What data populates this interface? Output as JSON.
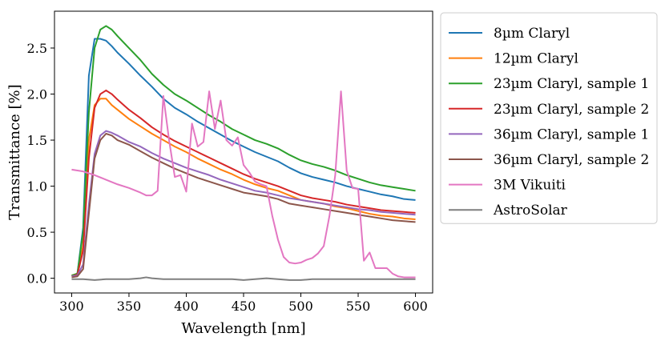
{
  "chart_data": {
    "type": "line",
    "title": "",
    "xlabel": "Wavelength [nm]",
    "ylabel": "Transmittance [%]",
    "xlim": [
      285,
      615
    ],
    "ylim": [
      -0.16,
      2.9
    ],
    "xticks": [
      300,
      350,
      400,
      450,
      500,
      550,
      600
    ],
    "yticks": [
      0.0,
      0.5,
      1.0,
      1.5,
      2.0,
      2.5
    ],
    "xtick_labels": [
      "300",
      "350",
      "400",
      "450",
      "500",
      "550",
      "600"
    ],
    "ytick_labels": [
      "0.0",
      "0.5",
      "1.0",
      "1.5",
      "2.0",
      "2.5"
    ],
    "grid": false,
    "legend_position": "outside-right",
    "series": [
      {
        "name": "8µm Claryl",
        "color": "#1f77b4",
        "x": [
          300,
          305,
          310,
          315,
          320,
          325,
          330,
          335,
          340,
          350,
          360,
          370,
          380,
          390,
          400,
          410,
          420,
          430,
          440,
          450,
          460,
          470,
          480,
          490,
          500,
          510,
          520,
          530,
          540,
          550,
          560,
          570,
          580,
          590,
          600
        ],
        "y": [
          0.03,
          0.05,
          0.55,
          2.2,
          2.6,
          2.6,
          2.58,
          2.52,
          2.45,
          2.33,
          2.2,
          2.08,
          1.95,
          1.85,
          1.78,
          1.7,
          1.63,
          1.56,
          1.49,
          1.43,
          1.37,
          1.32,
          1.27,
          1.2,
          1.14,
          1.1,
          1.07,
          1.04,
          1.0,
          0.97,
          0.94,
          0.91,
          0.89,
          0.86,
          0.85
        ]
      },
      {
        "name": "12µm Claryl",
        "color": "#ff7f0e",
        "x": [
          300,
          305,
          310,
          315,
          320,
          325,
          330,
          335,
          340,
          350,
          360,
          370,
          380,
          390,
          400,
          410,
          420,
          430,
          440,
          450,
          460,
          470,
          480,
          490,
          500,
          510,
          520,
          530,
          540,
          550,
          560,
          570,
          580,
          590,
          600
        ],
        "y": [
          0.03,
          0.05,
          0.35,
          1.5,
          1.88,
          1.95,
          1.95,
          1.88,
          1.83,
          1.73,
          1.65,
          1.57,
          1.5,
          1.43,
          1.37,
          1.3,
          1.24,
          1.18,
          1.13,
          1.07,
          1.02,
          0.98,
          0.95,
          0.9,
          0.85,
          0.83,
          0.81,
          0.78,
          0.76,
          0.73,
          0.7,
          0.68,
          0.67,
          0.65,
          0.64
        ]
      },
      {
        "name": "23µm Claryl, sample 1",
        "color": "#2ca02c",
        "x": [
          300,
          305,
          310,
          315,
          320,
          325,
          330,
          335,
          340,
          350,
          360,
          370,
          380,
          390,
          400,
          410,
          420,
          430,
          440,
          450,
          460,
          470,
          480,
          490,
          500,
          510,
          520,
          530,
          540,
          550,
          560,
          570,
          580,
          590,
          600
        ],
        "y": [
          0.03,
          0.05,
          0.5,
          1.8,
          2.5,
          2.7,
          2.74,
          2.7,
          2.63,
          2.5,
          2.37,
          2.22,
          2.1,
          2.0,
          1.93,
          1.85,
          1.77,
          1.7,
          1.62,
          1.56,
          1.5,
          1.46,
          1.41,
          1.34,
          1.28,
          1.24,
          1.21,
          1.17,
          1.12,
          1.08,
          1.04,
          1.01,
          0.99,
          0.97,
          0.95
        ]
      },
      {
        "name": "23µm Claryl, sample 2",
        "color": "#d62728",
        "x": [
          300,
          305,
          310,
          315,
          320,
          325,
          330,
          335,
          340,
          350,
          360,
          370,
          380,
          390,
          400,
          410,
          420,
          430,
          440,
          450,
          460,
          470,
          480,
          490,
          500,
          510,
          520,
          530,
          540,
          550,
          560,
          570,
          580,
          590,
          600
        ],
        "y": [
          0.02,
          0.04,
          0.3,
          1.3,
          1.85,
          2.0,
          2.04,
          2.0,
          1.94,
          1.83,
          1.74,
          1.64,
          1.56,
          1.49,
          1.43,
          1.37,
          1.31,
          1.25,
          1.19,
          1.13,
          1.08,
          1.04,
          1.0,
          0.95,
          0.9,
          0.87,
          0.85,
          0.83,
          0.8,
          0.78,
          0.76,
          0.74,
          0.73,
          0.72,
          0.71
        ]
      },
      {
        "name": "36µm Claryl, sample 1",
        "color": "#9467bd",
        "x": [
          300,
          305,
          310,
          315,
          320,
          325,
          330,
          335,
          340,
          350,
          360,
          370,
          380,
          390,
          400,
          410,
          420,
          430,
          440,
          450,
          460,
          470,
          480,
          490,
          500,
          510,
          520,
          530,
          540,
          550,
          560,
          570,
          580,
          590,
          600
        ],
        "y": [
          0.02,
          0.03,
          0.15,
          0.8,
          1.35,
          1.55,
          1.6,
          1.58,
          1.55,
          1.48,
          1.43,
          1.36,
          1.3,
          1.25,
          1.2,
          1.16,
          1.12,
          1.07,
          1.03,
          0.99,
          0.95,
          0.93,
          0.9,
          0.87,
          0.85,
          0.83,
          0.81,
          0.79,
          0.77,
          0.75,
          0.74,
          0.72,
          0.71,
          0.7,
          0.69
        ]
      },
      {
        "name": "36µm Claryl, sample 2",
        "color": "#8c564b",
        "x": [
          300,
          305,
          310,
          315,
          320,
          325,
          330,
          335,
          340,
          350,
          360,
          370,
          380,
          390,
          400,
          410,
          420,
          430,
          440,
          450,
          460,
          470,
          480,
          490,
          500,
          510,
          520,
          530,
          540,
          550,
          560,
          570,
          580,
          590,
          600
        ],
        "y": [
          0.01,
          0.02,
          0.1,
          0.7,
          1.3,
          1.5,
          1.57,
          1.55,
          1.5,
          1.45,
          1.38,
          1.31,
          1.25,
          1.19,
          1.14,
          1.09,
          1.05,
          1.01,
          0.97,
          0.93,
          0.91,
          0.89,
          0.86,
          0.81,
          0.79,
          0.77,
          0.75,
          0.73,
          0.71,
          0.69,
          0.67,
          0.65,
          0.63,
          0.62,
          0.61
        ]
      },
      {
        "name": "3M Vikuiti",
        "color": "#e377c2",
        "x": [
          300,
          310,
          320,
          330,
          340,
          350,
          360,
          365,
          370,
          375,
          380,
          385,
          390,
          395,
          400,
          405,
          410,
          415,
          420,
          425,
          430,
          435,
          440,
          445,
          450,
          455,
          460,
          465,
          470,
          475,
          480,
          485,
          490,
          495,
          500,
          505,
          510,
          515,
          520,
          525,
          530,
          535,
          540,
          545,
          550,
          555,
          560,
          565,
          570,
          575,
          580,
          585,
          590,
          595,
          600
        ],
        "y": [
          1.18,
          1.16,
          1.12,
          1.07,
          1.02,
          0.98,
          0.93,
          0.9,
          0.9,
          0.95,
          1.98,
          1.5,
          1.1,
          1.12,
          0.94,
          1.68,
          1.43,
          1.48,
          2.03,
          1.62,
          1.93,
          1.5,
          1.44,
          1.53,
          1.23,
          1.15,
          1.05,
          1.02,
          1.0,
          0.68,
          0.42,
          0.23,
          0.17,
          0.16,
          0.17,
          0.2,
          0.22,
          0.27,
          0.35,
          0.68,
          1.12,
          2.03,
          1.17,
          0.98,
          0.97,
          0.19,
          0.28,
          0.11,
          0.11,
          0.11,
          0.05,
          0.02,
          0.01,
          0.01,
          0.01
        ]
      },
      {
        "name": "AstroSolar",
        "color": "#7f7f7f",
        "x": [
          300,
          310,
          320,
          330,
          340,
          350,
          360,
          365,
          370,
          380,
          390,
          400,
          410,
          420,
          430,
          440,
          450,
          460,
          470,
          480,
          490,
          500,
          510,
          520,
          530,
          540,
          550,
          560,
          570,
          580,
          590,
          600
        ],
        "y": [
          -0.01,
          -0.01,
          -0.02,
          -0.01,
          -0.01,
          -0.01,
          0.0,
          0.01,
          0.0,
          -0.01,
          -0.01,
          -0.01,
          -0.01,
          -0.01,
          -0.01,
          -0.01,
          -0.02,
          -0.01,
          0.0,
          -0.01,
          -0.02,
          -0.02,
          -0.01,
          -0.01,
          -0.01,
          -0.01,
          -0.01,
          -0.01,
          -0.01,
          -0.01,
          -0.01,
          -0.01
        ]
      }
    ]
  }
}
